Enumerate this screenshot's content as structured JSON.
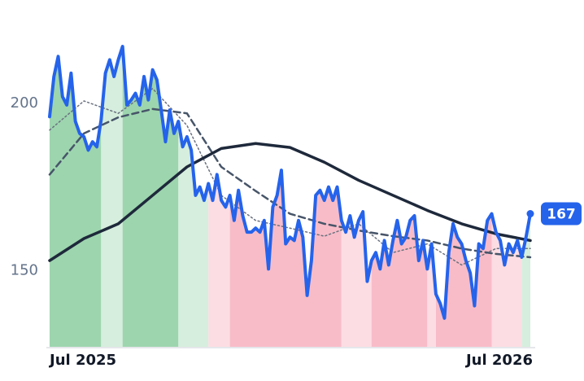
{
  "chart_data": {
    "type": "line",
    "x": [
      0,
      1,
      2,
      3,
      4,
      5,
      6,
      7,
      8,
      9,
      10,
      11,
      12,
      13,
      14,
      15,
      16,
      17,
      18,
      19,
      20,
      21,
      22,
      23,
      24,
      25,
      26,
      27,
      28,
      29,
      30,
      31,
      32,
      33,
      34,
      35,
      36,
      37,
      38,
      39,
      40,
      41,
      42,
      43,
      44,
      45,
      46,
      47,
      48,
      49,
      50,
      51,
      52,
      53,
      54,
      55,
      56,
      57,
      58,
      59,
      60,
      61,
      62,
      63,
      64,
      65,
      66,
      67,
      68,
      69,
      70,
      71,
      72,
      73,
      74,
      75,
      76,
      77,
      78,
      79,
      80,
      81,
      82,
      83,
      84,
      85,
      86,
      87,
      88,
      89,
      90,
      91,
      92,
      93,
      94,
      95,
      96,
      97,
      98,
      99,
      100,
      101,
      102,
      103,
      104,
      105,
      106,
      107,
      108,
      109,
      110,
      111,
      112
    ],
    "xlim": [
      0,
      112
    ],
    "xticks": [
      {
        "value": 0,
        "label": "Jul 2025"
      },
      {
        "value": 112,
        "label": "Jul 2026"
      }
    ],
    "ylim": [
      127,
      226
    ],
    "yticks": [
      150,
      200
    ],
    "series": [
      {
        "color": "#2563eb",
        "values": [
          196,
          208,
          214,
          202,
          199.5,
          209,
          194.6,
          191,
          190,
          186,
          188.5,
          187,
          195,
          209,
          213,
          208,
          213,
          217,
          199.5,
          201,
          203,
          199.5,
          208,
          201,
          210,
          207,
          198,
          188.5,
          198,
          191,
          194.6,
          187,
          190,
          186,
          172.5,
          175,
          171,
          176,
          171,
          178.7,
          171,
          169,
          172.5,
          165,
          174,
          166.4,
          161.5,
          161.5,
          162.7,
          161.5,
          165,
          150.5,
          169,
          172.5,
          180,
          158,
          160,
          159,
          165,
          160,
          142.6,
          153,
          172.5,
          174,
          171,
          175,
          171,
          175,
          165,
          161.5,
          166.4,
          160,
          165,
          167.6,
          146.8,
          153,
          155.4,
          150.5,
          159,
          151.7,
          159,
          165,
          158,
          160,
          165,
          166.4,
          153,
          159,
          150.5,
          158,
          143,
          140.2,
          135.8,
          155.4,
          164,
          160,
          158,
          153,
          149.3,
          139.5,
          158,
          156.6,
          165,
          167,
          161.5,
          159,
          151.7,
          158,
          155.4,
          159,
          154,
          160,
          167
        ]
      },
      {
        "color": "#6b7280",
        "dash": "dotted",
        "x": [
          0,
          8,
          16,
          24,
          32,
          40,
          48,
          56,
          64,
          72,
          80,
          88,
          96,
          104,
          112
        ],
        "values": [
          192,
          200.7,
          197,
          204.4,
          193.4,
          172.5,
          165,
          162.7,
          160.3,
          164,
          155.4,
          158,
          151.7,
          156.6,
          156.6
        ]
      },
      {
        "color": "#475569",
        "dash": "dashed",
        "x": [
          0,
          8,
          16,
          24,
          32,
          40,
          48,
          56,
          64,
          72,
          80,
          88,
          96,
          104,
          112
        ],
        "values": [
          178.7,
          191,
          195.8,
          198.3,
          197,
          181,
          173.8,
          167,
          164,
          162,
          160.3,
          159,
          156.6,
          155,
          154
        ]
      },
      {
        "color": "#1e293b",
        "dash": "solid",
        "x": [
          0,
          8,
          16,
          24,
          32,
          40,
          48,
          56,
          64,
          72,
          80,
          88,
          96,
          104,
          112
        ],
        "values": [
          153,
          159.6,
          164,
          172.5,
          181,
          186.5,
          188,
          186.8,
          182.4,
          177,
          172.5,
          168,
          164,
          161,
          159
        ]
      }
    ],
    "bands": [
      {
        "start": 0,
        "end": 12,
        "color": "#9dd5ae"
      },
      {
        "start": 12,
        "end": 17,
        "color": "#d6eedd"
      },
      {
        "start": 17,
        "end": 30,
        "color": "#9dd5ae"
      },
      {
        "start": 30,
        "end": 37,
        "color": "#d6eedd"
      },
      {
        "start": 37,
        "end": 42,
        "color": "#fcdde3"
      },
      {
        "start": 42,
        "end": 68,
        "color": "#f8bcc8"
      },
      {
        "start": 68,
        "end": 75,
        "color": "#fcdde3"
      },
      {
        "start": 75,
        "end": 88,
        "color": "#f8bcc8"
      },
      {
        "start": 88,
        "end": 90,
        "color": "#fcdde3"
      },
      {
        "start": 90,
        "end": 103,
        "color": "#f8bcc8"
      },
      {
        "start": 103,
        "end": 110,
        "color": "#fcdde3"
      },
      {
        "start": 110,
        "end": 112,
        "color": "#d6eedd"
      }
    ]
  }
}
